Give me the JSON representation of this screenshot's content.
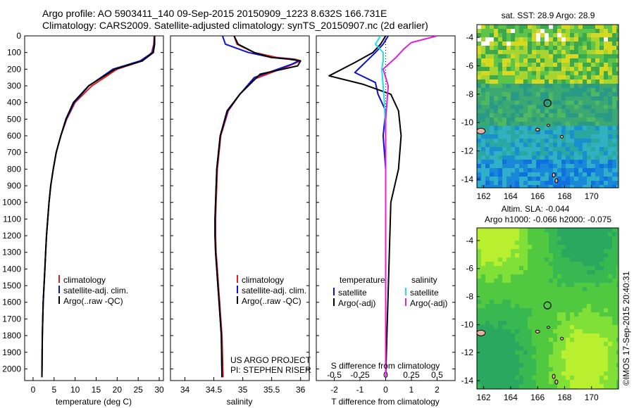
{
  "header": {
    "line1": "Argo profile: AO 5903411_140 09-Sep-2015 20150909_1223 8.632S 166.731E",
    "line2": "Climatology: CARS2009. Satellite-adjusted climatology: synTS_20150907.nc (2d earlier)"
  },
  "credits": {
    "project": "US ARGO PROJECT",
    "pi": "PI: STEPHEN RISER",
    "imos": "©IMOS 17-Sep-2015 20:40:31"
  },
  "colors": {
    "climatology": "#e02020",
    "satellite": "#1010d0",
    "argo": "#000000",
    "sal_satellite": "#20e0e0",
    "sal_argo": "#e020e0"
  },
  "map_titles": {
    "sst": "sat. SST: 28.9 Argo: 28.9",
    "sla_line1": "Altim. SLA: -0.044",
    "sla_line2": "Argo h1000: -0.066 h2000: -0.075"
  },
  "chart_data": [
    {
      "type": "line",
      "xlabel": "temperature (deg C)",
      "ylabel": "",
      "xlim": [
        -2,
        31
      ],
      "ylim": [
        2070,
        0
      ],
      "xticks": [
        "0",
        "5",
        "10",
        "15",
        "20",
        "25",
        "30"
      ],
      "yticks": [
        "0",
        "100",
        "200",
        "300",
        "400",
        "500",
        "600",
        "700",
        "800",
        "900",
        "1000",
        "1100",
        "1200",
        "1300",
        "1400",
        "1500",
        "1600",
        "1700",
        "1800",
        "1900",
        "2000"
      ],
      "legend": [
        "climatology",
        "satellite-adj. clim.",
        "Argo(..raw -QC)"
      ],
      "legend_position": "lower-left",
      "series": [
        {
          "name": "climatology",
          "color": "#e02020",
          "x": [
            28.8,
            28.7,
            28.2,
            26.0,
            20.0,
            14.0,
            10.0,
            8.0,
            6.6,
            5.5,
            4.8,
            4.2,
            3.8,
            3.5,
            3.2,
            3.0,
            2.8,
            2.6,
            2.4,
            2.3,
            2.2,
            2.1
          ],
          "y": [
            0,
            50,
            100,
            150,
            200,
            300,
            400,
            500,
            600,
            700,
            800,
            900,
            1000,
            1100,
            1200,
            1300,
            1400,
            1500,
            1600,
            1700,
            1800,
            2050
          ]
        },
        {
          "name": "satellite-adj. clim.",
          "color": "#1010d0",
          "x": [
            28.9,
            28.8,
            28.4,
            25.5,
            19.0,
            13.3,
            9.8,
            7.9,
            6.6,
            5.5,
            4.8,
            4.2,
            3.8,
            3.5,
            3.2,
            3.0,
            2.8,
            2.6,
            2.4,
            2.3,
            2.2,
            2.1
          ],
          "y": [
            0,
            50,
            100,
            150,
            200,
            300,
            400,
            500,
            600,
            700,
            800,
            900,
            1000,
            1100,
            1200,
            1300,
            1400,
            1500,
            1600,
            1700,
            1800,
            2050
          ]
        },
        {
          "name": "Argo(..raw -QC)",
          "color": "#000000",
          "x": [
            28.9,
            28.9,
            28.6,
            26.0,
            19.5,
            13.2,
            9.6,
            7.8,
            6.6,
            5.5,
            4.8,
            4.2,
            3.8,
            3.5,
            3.2,
            3.0,
            2.8,
            2.6,
            2.4,
            2.3,
            2.2,
            2.1
          ],
          "y": [
            0,
            50,
            100,
            150,
            200,
            300,
            400,
            500,
            600,
            700,
            800,
            900,
            1000,
            1100,
            1200,
            1300,
            1400,
            1500,
            1600,
            1700,
            1800,
            2050
          ]
        }
      ]
    },
    {
      "type": "line",
      "xlabel": "salinity",
      "ylabel": "",
      "xlim": [
        33.75,
        36.15
      ],
      "ylim": [
        2070,
        0
      ],
      "xticks": [
        "34",
        "34.5",
        "35",
        "35.5",
        "36"
      ],
      "legend": [
        "climatology",
        "satellite-adj. clim.",
        "Argo(..raw -QC)"
      ],
      "legend_position": "lower-left",
      "series": [
        {
          "name": "climatology",
          "color": "#e02020",
          "x": [
            34.85,
            34.9,
            35.2,
            35.6,
            35.9,
            36.0,
            35.8,
            35.2,
            34.95,
            34.75,
            34.62,
            34.56,
            34.54,
            34.53,
            34.53,
            34.54,
            34.56,
            34.58,
            34.6,
            34.62,
            34.64,
            34.66
          ],
          "y": [
            0,
            50,
            100,
            130,
            140,
            150,
            180,
            260,
            350,
            450,
            600,
            800,
            1000,
            1100,
            1200,
            1300,
            1400,
            1500,
            1600,
            1700,
            1800,
            2050
          ]
        },
        {
          "name": "satellite-adj. clim.",
          "color": "#1010d0",
          "x": [
            34.65,
            34.7,
            35.1,
            35.5,
            35.85,
            35.97,
            35.85,
            35.2,
            34.95,
            34.74,
            34.61,
            34.55,
            34.53,
            34.52,
            34.52,
            34.53,
            34.55,
            34.57,
            34.59,
            34.61,
            34.63,
            34.64
          ],
          "y": [
            0,
            50,
            100,
            130,
            140,
            150,
            170,
            250,
            350,
            450,
            600,
            800,
            1000,
            1100,
            1200,
            1300,
            1400,
            1500,
            1600,
            1700,
            1800,
            2050
          ]
        },
        {
          "name": "Argo(..raw -QC)",
          "color": "#000000",
          "x": [
            34.85,
            34.92,
            35.2,
            35.5,
            35.8,
            36.0,
            35.95,
            35.3,
            34.95,
            34.73,
            34.61,
            34.55,
            34.53,
            34.52,
            34.52,
            34.53,
            34.55,
            34.57,
            34.59,
            34.61,
            34.63,
            34.64
          ],
          "y": [
            0,
            50,
            100,
            130,
            140,
            150,
            180,
            230,
            350,
            450,
            600,
            800,
            1000,
            1100,
            1200,
            1300,
            1400,
            1500,
            1600,
            1700,
            1800,
            2050
          ]
        }
      ]
    },
    {
      "type": "line",
      "xlabel": "T difference from climatology",
      "x2label": "S difference from climatology",
      "xlim": [
        -2.7,
        2.7
      ],
      "ylim": [
        2070,
        0
      ],
      "xticks": [
        "-2",
        "-1",
        "0",
        "1",
        "2"
      ],
      "x2ticks": [
        "-0.5",
        "-0.25",
        "0",
        "0.25",
        "0.5"
      ],
      "legend_temperature": {
        "title": "temperature",
        "entries": [
          "satellite",
          "Argo(-adj)"
        ]
      },
      "legend_salinity": {
        "title": "salinity",
        "entries": [
          "satellite",
          "Argo(-adj)"
        ]
      },
      "series": [
        {
          "name": "satellite",
          "group": "temperature",
          "color": "#1010d0",
          "x": [
            0.1,
            -0.1,
            -0.4,
            -0.8,
            -1.2,
            -0.4,
            -0.3,
            0.0,
            -0.1,
            0.0,
            0.0,
            0.0
          ],
          "y": [
            0,
            50,
            100,
            160,
            220,
            280,
            350,
            450,
            600,
            800,
            1200,
            2050
          ]
        },
        {
          "name": "Argo(-adj)",
          "group": "temperature",
          "color": "#000000",
          "x": [
            0.0,
            -0.2,
            -0.5,
            -1.2,
            -2.2,
            -0.9,
            0.2,
            0.5,
            0.6,
            0.5,
            0.2,
            0.0
          ],
          "y": [
            0,
            50,
            100,
            160,
            240,
            290,
            350,
            450,
            600,
            800,
            1000,
            2050
          ]
        },
        {
          "name": "satellite",
          "group": "salinity",
          "color": "#20e0e0",
          "x": [
            -0.2,
            -0.4,
            -0.1,
            -0.1,
            -0.15,
            -0.1,
            -0.05,
            0.0,
            0.0,
            0.0
          ],
          "y": [
            0,
            50,
            100,
            150,
            200,
            300,
            400,
            600,
            1000,
            2050
          ]
        },
        {
          "name": "Argo(-adj)",
          "group": "salinity",
          "color": "#e020e0",
          "x": [
            2.0,
            1.0,
            0.7,
            0.4,
            -0.1,
            0.1,
            0.0,
            0.0,
            0.0
          ],
          "y": [
            0,
            40,
            80,
            130,
            200,
            300,
            500,
            1000,
            2050
          ]
        }
      ]
    },
    {
      "type": "heatmap",
      "title": "sat. SST: 28.9 Argo: 28.9",
      "xlim": [
        161.5,
        172
      ],
      "ylim": [
        -14.6,
        -3.1
      ],
      "xticks": [
        "162",
        "164",
        "166",
        "168",
        "170"
      ],
      "yticks": [
        "-4",
        "-6",
        "-8",
        "-10",
        "-12",
        "-14"
      ],
      "marker": {
        "lon": 166.731,
        "lat": -8.632
      }
    },
    {
      "type": "heatmap",
      "title": "Altim. SLA: -0.044",
      "subtitle": "Argo h1000: -0.066 h2000: -0.075",
      "xlim": [
        161.5,
        172
      ],
      "ylim": [
        -14.6,
        -3.1
      ],
      "xticks": [
        "162",
        "164",
        "166",
        "168",
        "170"
      ],
      "yticks": [
        "-4",
        "-6",
        "-8",
        "-10",
        "-12",
        "-14"
      ],
      "marker": {
        "lon": 166.731,
        "lat": -8.632
      }
    }
  ]
}
